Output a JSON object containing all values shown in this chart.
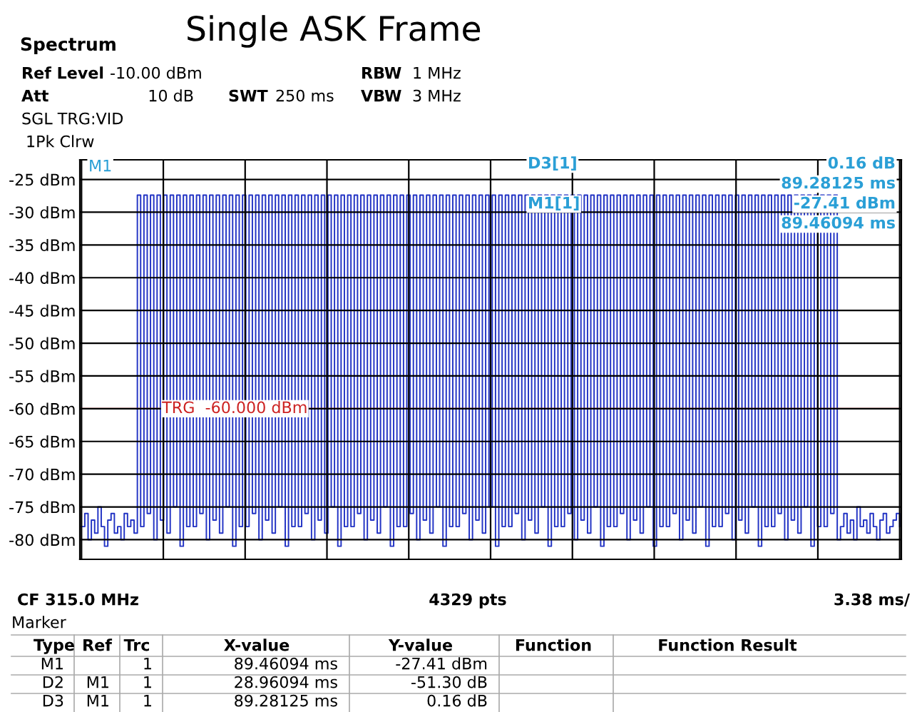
{
  "chart_data": {
    "type": "step",
    "title": "Single ASK Frame",
    "categories": [
      null,
      null,
      null,
      null,
      null,
      null,
      null,
      null,
      null,
      null,
      null,
      null,
      null,
      null,
      null,
      null,
      null,
      null,
      null,
      null,
      null,
      null,
      null,
      null,
      null,
      null,
      null,
      null,
      null,
      null,
      null,
      null,
      null,
      null,
      null,
      null,
      null,
      null,
      null,
      null,
      null,
      null,
      null,
      null,
      null,
      null,
      null,
      null,
      null,
      null,
      null,
      null,
      null,
      null,
      null,
      null,
      null,
      null,
      null,
      null,
      null,
      null,
      null,
      null,
      null,
      null,
      null,
      null,
      null,
      null,
      null,
      null,
      null,
      null,
      null,
      null,
      null,
      null,
      null,
      null,
      null,
      null,
      null,
      null,
      null,
      null,
      null,
      null,
      null,
      null,
      null,
      null,
      null,
      null,
      null,
      null,
      null,
      null,
      null,
      null,
      null,
      null,
      null,
      null,
      null,
      null,
      null,
      null,
      null,
      null,
      null,
      null,
      null,
      null,
      null,
      null,
      null,
      null,
      null,
      null,
      null,
      null,
      null,
      null,
      null,
      null,
      null,
      null,
      null,
      null,
      null,
      null,
      null,
      null,
      null,
      null,
      null,
      null,
      null,
      null,
      null,
      null,
      null,
      null,
      null,
      null,
      null,
      null,
      null,
      null,
      null,
      null,
      null,
      null,
      null,
      null,
      null,
      null,
      null,
      null,
      null,
      null,
      null,
      null,
      null,
      null,
      null,
      null,
      null,
      null,
      null,
      null,
      null,
      null,
      null,
      null,
      null,
      null,
      null,
      null,
      null,
      null,
      null,
      null,
      null,
      null,
      null,
      null,
      null,
      null,
      null,
      null,
      null,
      null,
      null,
      null,
      null,
      null,
      null,
      null,
      null,
      null,
      null,
      null,
      null,
      null,
      null,
      null,
      null,
      null,
      null,
      null,
      null,
      null,
      null,
      null,
      null,
      null,
      null,
      null,
      null,
      null,
      null,
      null,
      null,
      null,
      null,
      null,
      null,
      null,
      null,
      null,
      null,
      null,
      null,
      null,
      null,
      null,
      null,
      null,
      null,
      null,
      null,
      null,
      null,
      null,
      null,
      null,
      null,
      null
    ],
    "series": [
      {
        "color": "#2233c4",
        "values": [
          -78,
          -76,
          -80,
          -77,
          -79,
          -75,
          -78,
          -81,
          -77,
          -76,
          -79,
          -78,
          -80,
          -76,
          -78,
          -77,
          -79,
          -27.4,
          -78,
          -27.4,
          -76,
          -27.4,
          -80,
          -27.4,
          -77,
          -27.4,
          -79,
          -27.4,
          -75,
          -27.4,
          -81,
          -27.4,
          -78,
          -27.4,
          -78,
          -27.4,
          -76,
          -27.4,
          -80,
          -27.4,
          -77,
          -27.4,
          -79,
          -27.4,
          -75,
          -27.4,
          -81,
          -27.4,
          -78,
          -27.4,
          -78,
          -27.4,
          -76,
          -27.4,
          -80,
          -27.4,
          -77,
          -27.4,
          -79,
          -27.4,
          -75,
          -27.4,
          -81,
          -27.4,
          -78,
          -27.4,
          -78,
          -27.4,
          -76,
          -27.4,
          -80,
          -27.4,
          -77,
          -27.4,
          -79,
          -27.4,
          -75,
          -27.4,
          -81,
          -27.4,
          -78,
          -27.4,
          -78,
          -27.4,
          -76,
          -27.4,
          -80,
          -27.4,
          -77,
          -27.4,
          -79,
          -27.4,
          -75,
          -27.4,
          -81,
          -27.4,
          -78,
          -27.4,
          -78,
          -27.4,
          -76,
          -27.4,
          -80,
          -27.4,
          -77,
          -27.4,
          -79,
          -27.4,
          -75,
          -27.4,
          -81,
          -27.4,
          -78,
          -27.4,
          -78,
          -27.4,
          -76,
          -27.4,
          -80,
          -27.4,
          -77,
          -27.4,
          -79,
          -27.4,
          -75,
          -27.4,
          -81,
          -27.4,
          -78,
          -27.4,
          -78,
          -27.4,
          -76,
          -27.4,
          -80,
          -27.4,
          -77,
          -27.4,
          -79,
          -27.4,
          -75,
          -27.4,
          -81,
          -27.4,
          -78,
          -27.4,
          -78,
          -27.4,
          -76,
          -27.4,
          -80,
          -27.4,
          -77,
          -27.4,
          -79,
          -27.4,
          -75,
          -27.4,
          -81,
          -27.4,
          -78,
          -27.4,
          -78,
          -27.4,
          -76,
          -27.4,
          -80,
          -27.4,
          -77,
          -27.4,
          -79,
          -27.4,
          -75,
          -27.4,
          -81,
          -27.4,
          -78,
          -27.4,
          -78,
          -27.4,
          -76,
          -27.4,
          -80,
          -27.4,
          -77,
          -27.4,
          -79,
          -27.4,
          -75,
          -27.4,
          -81,
          -27.4,
          -78,
          -27.4,
          -78,
          -27.4,
          -76,
          -27.4,
          -80,
          -27.4,
          -77,
          -27.4,
          -79,
          -27.4,
          -75,
          -27.4,
          -81,
          -27.4,
          -78,
          -27.4,
          -78,
          -27.4,
          -76,
          -27.4,
          -80,
          -27.4,
          -77,
          -27.4,
          -79,
          -27.4,
          -75,
          -27.4,
          -81,
          -27.4,
          -78,
          -27.4,
          -78,
          -27.4,
          -76,
          -27.4,
          -80,
          -78,
          -76,
          -79,
          -77,
          -80,
          -75,
          -78,
          -77,
          -79,
          -76,
          -78,
          -80,
          -77,
          -76,
          -79,
          -78,
          -77,
          -76,
          -78
        ]
      }
    ],
    "ylim": [
      -83,
      -22
    ],
    "yticks": [
      {
        "value": -25,
        "label": "-25 dBm"
      },
      {
        "value": -30,
        "label": "-30 dBm"
      },
      {
        "value": -35,
        "label": "-35 dBm"
      },
      {
        "value": -40,
        "label": "-40 dBm"
      },
      {
        "value": -45,
        "label": "-45 dBm"
      },
      {
        "value": -50,
        "label": "-50 dBm"
      },
      {
        "value": -55,
        "label": "-55 dBm"
      },
      {
        "value": -60,
        "label": "-60 dBm"
      },
      {
        "value": -65,
        "label": "-65 dBm"
      },
      {
        "value": -70,
        "label": "-70 dBm"
      },
      {
        "value": -75,
        "label": "-75 dBm"
      },
      {
        "value": -80,
        "label": "-80 dBm"
      }
    ],
    "grid": true,
    "ref_lines": [
      {
        "axis": "y",
        "value": -60,
        "label": "TRG  -60.000 dBm",
        "color": "#cc2222"
      }
    ],
    "annotations": [
      "Spectrum",
      "Ref Level",
      "-10.00 dBm",
      "Att",
      "10 dB",
      "SWT",
      "250 ms",
      "RBW",
      "1 MHz",
      "VBW",
      "3 MHz",
      "SGL TRG:VID",
      "1Pk Clrw",
      "D3[1]",
      "0.16 dB",
      "89.28125 ms",
      "M1[1]",
      "-27.41 dBm",
      "89.46094 ms",
      "CF 315.0 MHz",
      "4329 pts",
      "3.38 ms/",
      "Marker",
      "Type",
      "Ref",
      "Trc",
      "X-value",
      "Y-value",
      "Function",
      "Function Result",
      "M1",
      "1",
      "89.46094 ms",
      "-27.41 dBm",
      "D2",
      "M1",
      "1",
      "28.96094 ms",
      "-51.30 dB",
      "D3",
      "M1",
      "1",
      "89.28125 ms",
      "0.16 dB",
      "M1"
    ]
  }
}
